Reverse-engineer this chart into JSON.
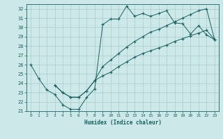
{
  "title": "",
  "xlabel": "Humidex (Indice chaleur)",
  "bg_color": "#cce8e8",
  "grid_color": "#aacccc",
  "line_color": "#1a6060",
  "xlim": [
    -0.5,
    23.5
  ],
  "ylim": [
    21,
    32.5
  ],
  "xticks": [
    0,
    1,
    2,
    3,
    4,
    5,
    6,
    7,
    8,
    9,
    10,
    11,
    12,
    13,
    14,
    15,
    16,
    17,
    18,
    19,
    20,
    21,
    22,
    23
  ],
  "yticks": [
    21,
    22,
    23,
    24,
    25,
    26,
    27,
    28,
    29,
    30,
    31,
    32
  ],
  "line1_x": [
    0,
    1,
    2,
    3,
    4,
    5,
    6,
    7,
    8,
    9,
    10,
    11,
    12,
    13,
    14,
    15,
    16,
    17,
    18,
    19,
    20,
    21,
    22,
    23
  ],
  "line1_y": [
    26.0,
    24.5,
    23.3,
    22.8,
    21.7,
    21.2,
    21.2,
    22.5,
    23.4,
    30.3,
    30.9,
    30.9,
    32.3,
    31.2,
    31.5,
    31.2,
    31.5,
    31.8,
    30.5,
    30.4,
    29.3,
    30.2,
    29.2,
    28.7
  ],
  "line2_x": [
    3,
    4,
    5,
    6,
    7,
    8,
    9,
    10,
    11,
    12,
    13,
    14,
    15,
    16,
    17,
    18,
    19,
    20,
    21,
    22,
    23
  ],
  "line2_y": [
    23.8,
    23.0,
    22.5,
    22.5,
    23.2,
    24.3,
    25.8,
    26.5,
    27.2,
    27.9,
    28.5,
    29.0,
    29.5,
    29.8,
    30.2,
    30.6,
    31.0,
    31.4,
    31.8,
    32.0,
    28.7
  ],
  "line3_x": [
    3,
    4,
    5,
    6,
    7,
    8,
    9,
    10,
    11,
    12,
    13,
    14,
    15,
    16,
    17,
    18,
    19,
    20,
    21,
    22,
    23
  ],
  "line3_y": [
    23.8,
    23.0,
    22.5,
    22.5,
    23.2,
    24.3,
    24.8,
    25.2,
    25.8,
    26.3,
    26.8,
    27.2,
    27.5,
    27.8,
    28.1,
    28.5,
    28.8,
    29.1,
    29.4,
    29.7,
    28.7
  ]
}
